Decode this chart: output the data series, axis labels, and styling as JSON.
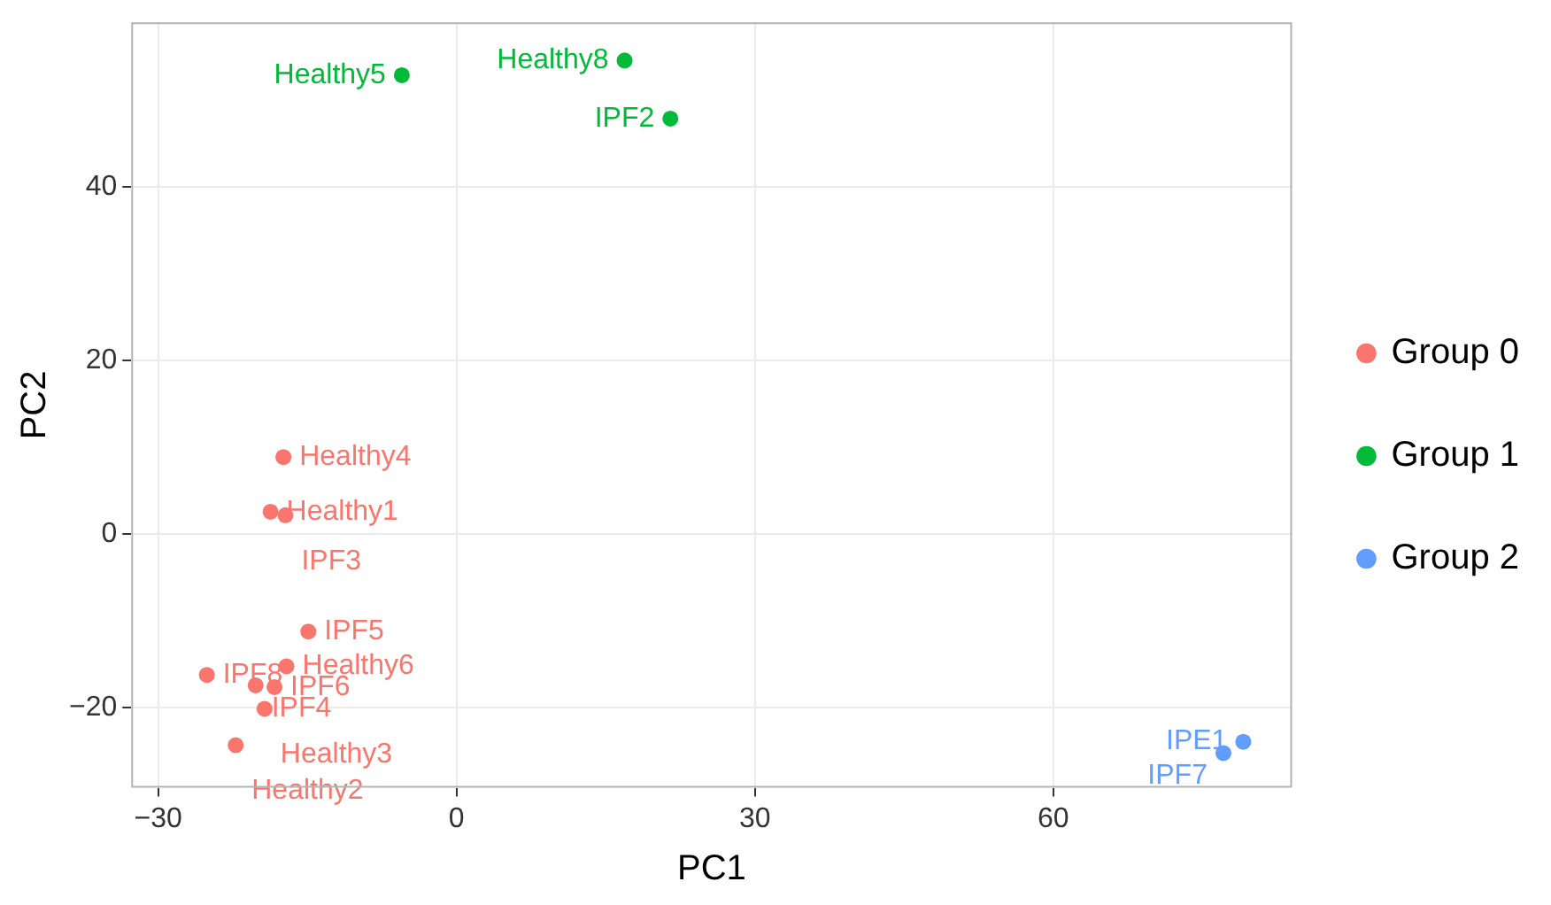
{
  "chart_data": {
    "type": "scatter",
    "xlabel": "PC1",
    "ylabel": "PC2",
    "xlim": [
      -32.7,
      84
    ],
    "ylim": [
      -29.2,
      59
    ],
    "xticks": [
      -30,
      0,
      30,
      60
    ],
    "yticks": [
      -20,
      0,
      20,
      40
    ],
    "grid": true,
    "legend": "right",
    "marker": "circle",
    "series": [
      {
        "name": "Group 0",
        "color": "#f8766d",
        "x": [
          -17.4,
          -18.7,
          -17.2,
          -14.9,
          -17.1,
          -25.1,
          -20.2,
          -18.3,
          -19.3,
          -22.2
        ],
        "values": [
          8.9,
          2.6,
          2.2,
          -11.2,
          -15.2,
          -16.2,
          -17.4,
          -17.6,
          -20.1,
          -24.3
        ]
      },
      {
        "name": "Group 1",
        "color": "#00ba38",
        "x": [
          -5.5,
          16.9,
          21.5
        ],
        "values": [
          52.9,
          54.6,
          47.9
        ]
      },
      {
        "name": "Group 2",
        "color": "#619cff",
        "x": [
          79.1,
          77.1
        ],
        "values": [
          -23.9,
          -25.2
        ]
      }
    ],
    "annotations": [
      {
        "text": "Healthy4",
        "x": -17.4,
        "y": 8.9
      },
      {
        "text": "Healthy1",
        "x": -18.7,
        "y": 2.6
      },
      {
        "text": "IPF3",
        "x": -17.2,
        "y": 2.2
      },
      {
        "text": "IPF5",
        "x": -14.9,
        "y": -11.2
      },
      {
        "text": "Healthy6",
        "x": -17.1,
        "y": -15.2
      },
      {
        "text": "IPF8",
        "x": -25.1,
        "y": -16.2
      },
      {
        "text": "IPF4",
        "x": -20.2,
        "y": -17.4
      },
      {
        "text": "IPF6",
        "x": -18.3,
        "y": -17.6
      },
      {
        "text": "Healthy3",
        "x": -19.3,
        "y": -20.1
      },
      {
        "text": "Healthy2",
        "x": -22.2,
        "y": -24.3
      },
      {
        "text": "Healthy5",
        "x": -5.5,
        "y": 52.9
      },
      {
        "text": "Healthy8",
        "x": 16.9,
        "y": 54.6
      },
      {
        "text": "IPF2",
        "x": 21.5,
        "y": 47.9
      },
      {
        "text": "IPE1",
        "x": 79.1,
        "y": -23.9
      },
      {
        "text": "IPF7",
        "x": 77.1,
        "y": -25.2
      }
    ]
  }
}
